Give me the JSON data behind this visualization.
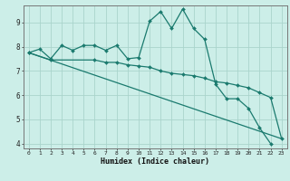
{
  "title": "",
  "xlabel": "Humidex (Indice chaleur)",
  "bg_color": "#cceee8",
  "grid_color": "#aad4cc",
  "line_color": "#1a7a6e",
  "xlim": [
    -0.5,
    23.5
  ],
  "ylim": [
    3.8,
    9.7
  ],
  "yticks": [
    4,
    5,
    6,
    7,
    8,
    9
  ],
  "xticks": [
    0,
    1,
    2,
    3,
    4,
    5,
    6,
    7,
    8,
    9,
    10,
    11,
    12,
    13,
    14,
    15,
    16,
    17,
    18,
    19,
    20,
    21,
    22,
    23
  ],
  "series1_x": [
    0,
    1,
    2,
    3,
    4,
    5,
    6,
    7,
    8,
    9,
    10,
    11,
    12,
    13,
    14,
    15,
    16,
    17,
    18,
    19,
    20,
    21,
    22
  ],
  "series1_y": [
    7.75,
    7.9,
    7.5,
    8.05,
    7.85,
    8.05,
    8.05,
    7.85,
    8.05,
    7.5,
    7.55,
    9.05,
    9.45,
    8.75,
    9.55,
    8.75,
    8.3,
    6.45,
    5.85,
    5.85,
    5.45,
    4.65,
    4.0
  ],
  "series2_x": [
    0,
    2,
    6,
    7,
    8,
    9,
    10,
    11,
    12,
    13,
    14,
    15,
    16,
    17,
    18,
    19,
    20,
    21,
    22,
    23
  ],
  "series2_y": [
    7.75,
    7.45,
    7.45,
    7.35,
    7.35,
    7.25,
    7.2,
    7.15,
    7.0,
    6.9,
    6.85,
    6.8,
    6.7,
    6.55,
    6.5,
    6.4,
    6.3,
    6.1,
    5.9,
    4.2
  ],
  "series3_x": [
    0,
    23
  ],
  "series3_y": [
    7.75,
    4.2
  ]
}
